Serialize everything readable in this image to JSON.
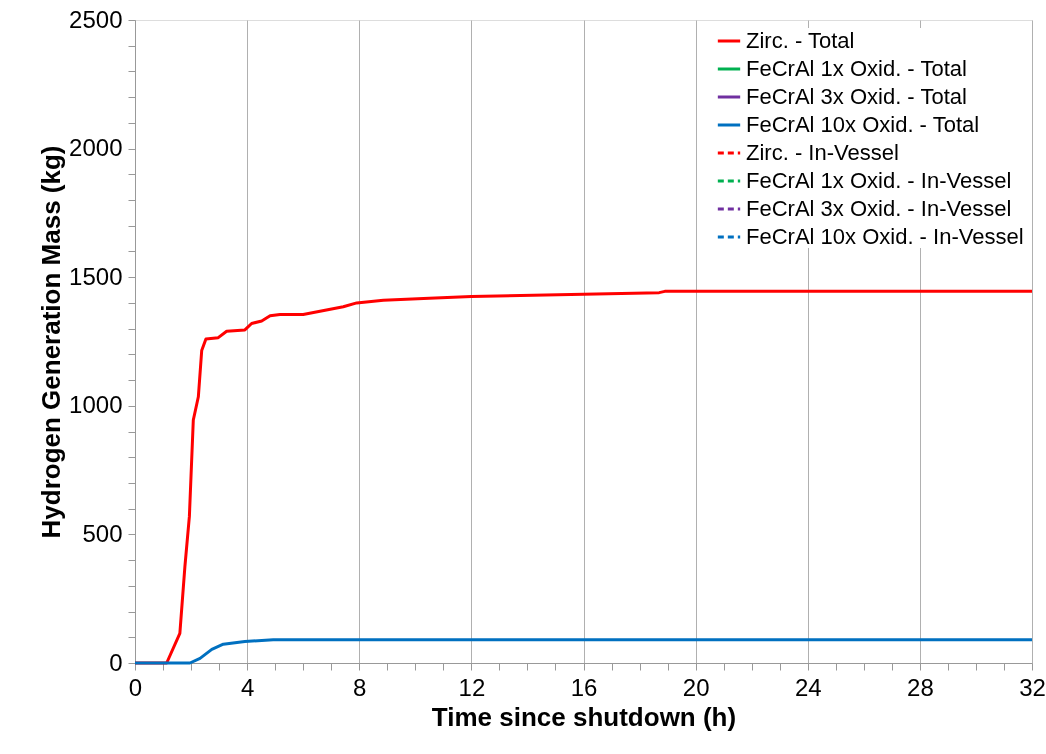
{
  "chart_data": {
    "type": "line",
    "xlabel": "Time since shutdown (h)",
    "ylabel": "Hydrogen Generation Mass (kg)",
    "xlim": [
      0,
      32
    ],
    "ylim": [
      0,
      2500
    ],
    "xticks": [
      0,
      {
        "value": 1,
        "label": null
      },
      {
        "value": 2,
        "label": null
      },
      {
        "value": 3,
        "label": null
      },
      4,
      {
        "value": 5,
        "label": null
      },
      {
        "value": 6,
        "label": null
      },
      {
        "value": 7,
        "label": null
      },
      8,
      {
        "value": 9,
        "label": null
      },
      {
        "value": 10,
        "label": null
      },
      {
        "value": 11,
        "label": null
      },
      12,
      {
        "value": 13,
        "label": null
      },
      {
        "value": 14,
        "label": null
      },
      {
        "value": 15,
        "label": null
      },
      16,
      {
        "value": 17,
        "label": null
      },
      {
        "value": 18,
        "label": null
      },
      {
        "value": 19,
        "label": null
      },
      20,
      {
        "value": 21,
        "label": null
      },
      {
        "value": 22,
        "label": null
      },
      {
        "value": 23,
        "label": null
      },
      24,
      {
        "value": 25,
        "label": null
      },
      {
        "value": 26,
        "label": null
      },
      {
        "value": 27,
        "label": null
      },
      28,
      {
        "value": 29,
        "label": null
      },
      {
        "value": 30,
        "label": null
      },
      {
        "value": 31,
        "label": null
      },
      32
    ],
    "yticks": [
      0,
      {
        "value": 100,
        "label": null
      },
      {
        "value": 200,
        "label": null
      },
      {
        "value": 300,
        "label": null
      },
      {
        "value": 400,
        "label": null
      },
      500,
      {
        "value": 600,
        "label": null
      },
      {
        "value": 700,
        "label": null
      },
      {
        "value": 800,
        "label": null
      },
      {
        "value": 900,
        "label": null
      },
      1000,
      {
        "value": 1100,
        "label": null
      },
      {
        "value": 1200,
        "label": null
      },
      {
        "value": 1300,
        "label": null
      },
      {
        "value": 1400,
        "label": null
      },
      1500,
      {
        "value": 1600,
        "label": null
      },
      {
        "value": 1700,
        "label": null
      },
      {
        "value": 1800,
        "label": null
      },
      {
        "value": 1900,
        "label": null
      },
      2000,
      {
        "value": 2100,
        "label": null
      },
      {
        "value": 2200,
        "label": null
      },
      {
        "value": 2300,
        "label": null
      },
      {
        "value": 2400,
        "label": null
      },
      2500
    ],
    "grid": "x",
    "legend": "top right",
    "marker": "none",
    "series": [
      {
        "name": "Zirc. - Total",
        "color": "#ff0000",
        "line_style": "solid",
        "x": [
          0,
          1.13,
          1.6,
          1.78,
          1.94,
          2.08,
          2.26,
          2.38,
          2.53,
          2.97,
          3.27,
          3.92,
          4.16,
          4.52,
          4.82,
          5.17,
          6.0,
          7.43,
          7.91,
          8.86,
          10.5,
          12,
          16,
          18.7,
          18.9,
          32
        ],
        "values": [
          0,
          0,
          115,
          375,
          570,
          945,
          1035,
          1215,
          1260,
          1265,
          1290,
          1295,
          1320,
          1330,
          1350,
          1355,
          1355,
          1385,
          1400,
          1410,
          1418,
          1425,
          1434,
          1440,
          1445,
          1445
        ]
      },
      {
        "name": "FeCrAl 1x Oxid. - Total",
        "color": "#00b050",
        "line_style": "solid"
      },
      {
        "name": "FeCrAl 3x Oxid. - Total",
        "color": "#7030a0",
        "line_style": "solid"
      },
      {
        "name": "FeCrAl 10x Oxid. - Total",
        "color": "#0070c0",
        "line_style": "solid",
        "x": [
          0,
          1.96,
          2.32,
          2.74,
          3.15,
          3.92,
          4.93,
          32
        ],
        "values": [
          0,
          0,
          18,
          53,
          73,
          84,
          90,
          90
        ]
      },
      {
        "name": "Zirc. - In-Vessel",
        "color": "#ff0000",
        "line_style": "dashed"
      },
      {
        "name": "FeCrAl 1x Oxid. - In-Vessel",
        "color": "#00b050",
        "line_style": "dashed"
      },
      {
        "name": "FeCrAl 3x Oxid. - In-Vessel",
        "color": "#7030a0",
        "line_style": "dashed"
      },
      {
        "name": "FeCrAl 10x Oxid. - In-Vessel",
        "color": "#0070c0",
        "line_style": "dashed"
      }
    ]
  }
}
